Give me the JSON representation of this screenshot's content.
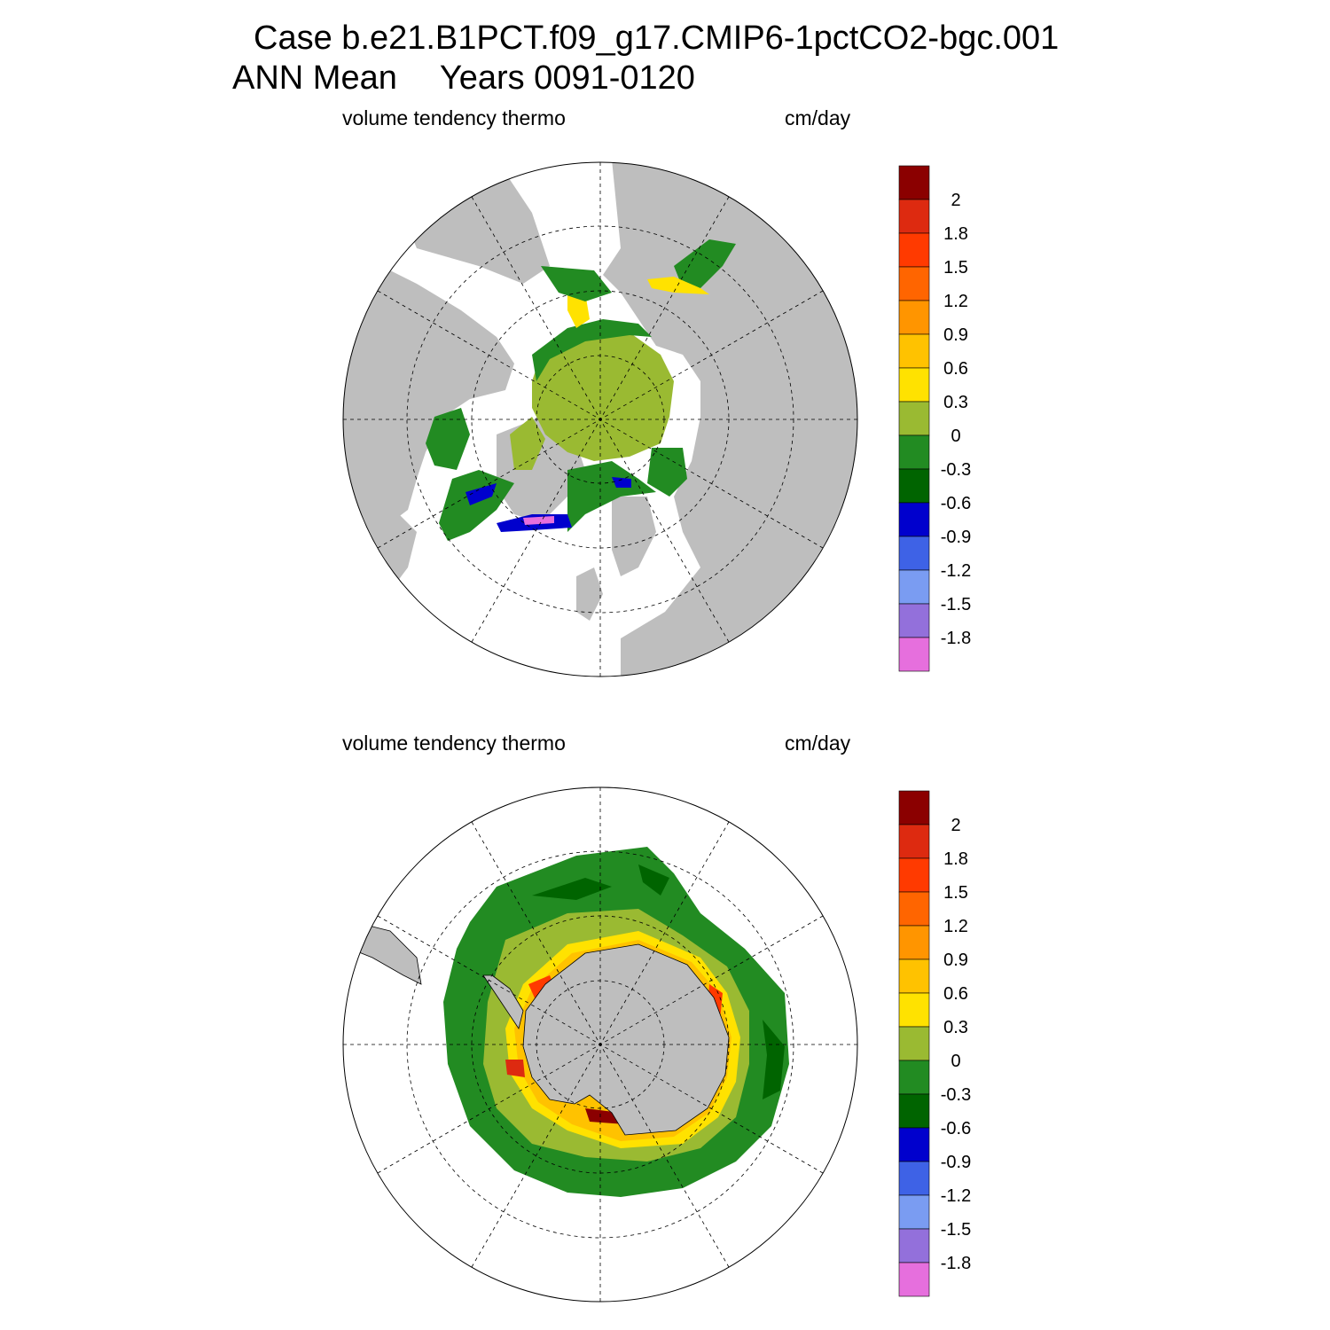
{
  "header": {
    "case_line": "Case b.e21.B1PCT.f09_g17.CMIP6-1pctCO2-bgc.001",
    "period": "ANN Mean",
    "years": "Years 0091-0120"
  },
  "panels": [
    {
      "hemisphere": "north",
      "variable": "volume tendency thermo",
      "units": "cm/day"
    },
    {
      "hemisphere": "south",
      "variable": "volume tendency thermo",
      "units": "cm/day"
    }
  ],
  "colorbar": {
    "levels": [
      "2",
      "1.8",
      "1.5",
      "1.2",
      "0.9",
      "0.6",
      "0.3",
      "0",
      "-0.3",
      "-0.6",
      "-0.9",
      "-1.2",
      "-1.5",
      "-1.8"
    ],
    "colors": [
      "#8b0000",
      "#dd2a10",
      "#ff3a00",
      "#ff6500",
      "#ff9500",
      "#ffc200",
      "#ffe200",
      "#9aba32",
      "#228b22",
      "#006400",
      "#0000cd",
      "#3e62e6",
      "#7a9cf2",
      "#9370db",
      "#e66fdd"
    ]
  },
  "map_colors": {
    "land": "#bebebe",
    "ocean": "#ffffff",
    "grid": "#000000"
  }
}
